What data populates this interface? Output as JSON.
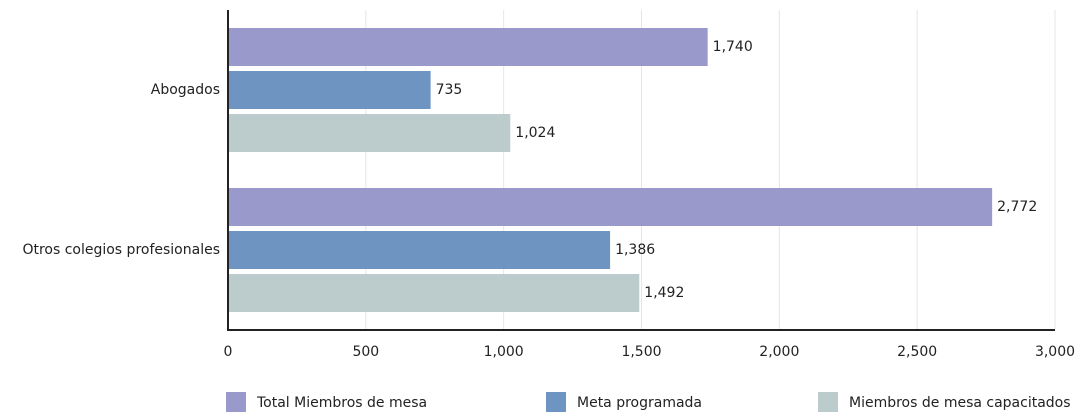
{
  "chart_data": {
    "type": "barh",
    "categories": [
      "Abogados",
      "Otros colegios profesionales"
    ],
    "series": [
      {
        "name": "Total Miembros de mesa",
        "color": "#9999cc",
        "values": [
          1740,
          2772
        ],
        "value_labels": [
          "1,740",
          "2,772"
        ]
      },
      {
        "name": "Meta programada",
        "color": "#6e95c1",
        "values": [
          735,
          1386
        ],
        "value_labels": [
          "735",
          "1,386"
        ]
      },
      {
        "name": "Miembros de mesa capacitados",
        "color": "#bccbcc",
        "values": [
          1024,
          1492
        ],
        "value_labels": [
          "1,024",
          "1,492"
        ]
      }
    ],
    "xlim": [
      0,
      3000
    ],
    "xticks": [
      0,
      500,
      {
        "value": 1000,
        "label": "1,000"
      },
      {
        "value": 1500,
        "label": "1,500"
      },
      {
        "value": 2000,
        "label": "2,000"
      },
      {
        "value": 2500,
        "label": "2,500"
      },
      {
        "value": 3000,
        "label": "3,000"
      }
    ],
    "grid": true,
    "legend": "bottom"
  }
}
